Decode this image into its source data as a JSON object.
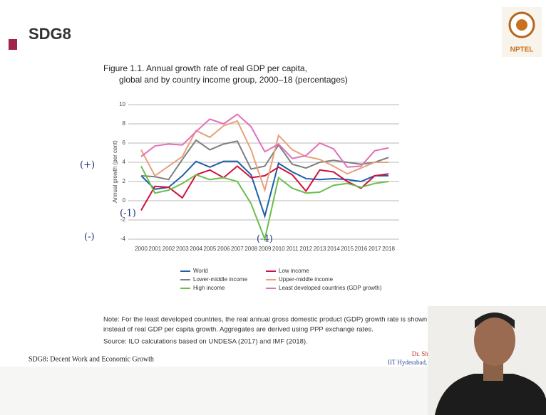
{
  "slide": {
    "title": "SDG8",
    "footer": "SDG8: Decent Work and Economic Growth",
    "presenter": "Dr. Shiva Ji",
    "affiliation": "IIT Hyderabad, India",
    "logo": "NPTEL"
  },
  "chart_data": {
    "type": "line",
    "title": [
      "Figure 1.1. Annual growth rate of real GDP per capita,",
      "global and by country income group, 2000–18 (percentages)"
    ],
    "y_label": "Annual growth (per cent)",
    "categories": [
      "2000",
      "2001",
      "2002",
      "2003",
      "2004",
      "2005",
      "2006",
      "2007",
      "2008",
      "2009",
      "2010",
      "2011",
      "2012",
      "2013",
      "2014",
      "2015",
      "2016",
      "2017",
      "2018"
    ],
    "ylim": [
      -4,
      10
    ],
    "yticks": [
      -4,
      -2,
      0,
      2,
      4,
      6,
      8,
      10
    ],
    "grid": true,
    "series": [
      {
        "name": "World",
        "color": "#1f5fa8",
        "values": [
          2.6,
          1.2,
          1.4,
          2.6,
          4.1,
          3.5,
          4.1,
          4.1,
          2.7,
          -1.6,
          3.9,
          3.0,
          2.3,
          2.2,
          2.3,
          2.2,
          2.0,
          2.6,
          2.6
        ]
      },
      {
        "name": "Low income",
        "color": "#d0103a",
        "values": [
          -1.0,
          1.5,
          1.4,
          0.3,
          2.7,
          3.2,
          2.4,
          3.6,
          2.4,
          2.6,
          3.5,
          2.7,
          1.0,
          3.2,
          3.0,
          2.0,
          1.3,
          2.6,
          2.8
        ]
      },
      {
        "name": "Lower-middle income",
        "color": "#7f7f7f",
        "values": [
          2.6,
          2.5,
          2.2,
          4.3,
          6.3,
          5.3,
          5.9,
          6.2,
          3.3,
          3.6,
          5.8,
          3.8,
          3.4,
          4.0,
          4.2,
          4.0,
          3.8,
          4.0,
          4.5
        ]
      },
      {
        "name": "Upper-middle income",
        "color": "#e8a07a",
        "values": [
          5.3,
          2.6,
          3.6,
          4.6,
          7.3,
          6.6,
          7.8,
          8.3,
          5.3,
          1.1,
          6.8,
          5.3,
          4.6,
          4.3,
          3.6,
          2.8,
          3.4,
          4.0,
          4.0
        ]
      },
      {
        "name": "High income",
        "color": "#6abf4b",
        "values": [
          3.6,
          0.8,
          1.1,
          1.8,
          2.7,
          2.2,
          2.4,
          2.0,
          -0.3,
          -4.0,
          2.4,
          1.3,
          0.8,
          0.9,
          1.6,
          1.8,
          1.4,
          1.8,
          2.0
        ]
      },
      {
        "name": "Least developed countries (GDP growth)",
        "color": "#e070b8",
        "values": [
          4.6,
          5.7,
          5.9,
          5.8,
          7.2,
          8.5,
          8.0,
          9.0,
          7.7,
          5.1,
          5.9,
          4.4,
          4.7,
          6.0,
          5.4,
          3.5,
          3.6,
          5.2,
          5.5
        ]
      }
    ],
    "note": [
      "Note: For the least developed countries, the real annual gross domestic product (GDP) growth rate is shown",
      "instead of real GDP per capita growth. Aggregates are derived using PPP exchange rates."
    ],
    "source": "Source: ILO calculations based on UNDESA (2017) and IMF (2018).",
    "annotations": [
      "(+)",
      "(-)",
      "(-1)",
      "(-4)"
    ]
  }
}
